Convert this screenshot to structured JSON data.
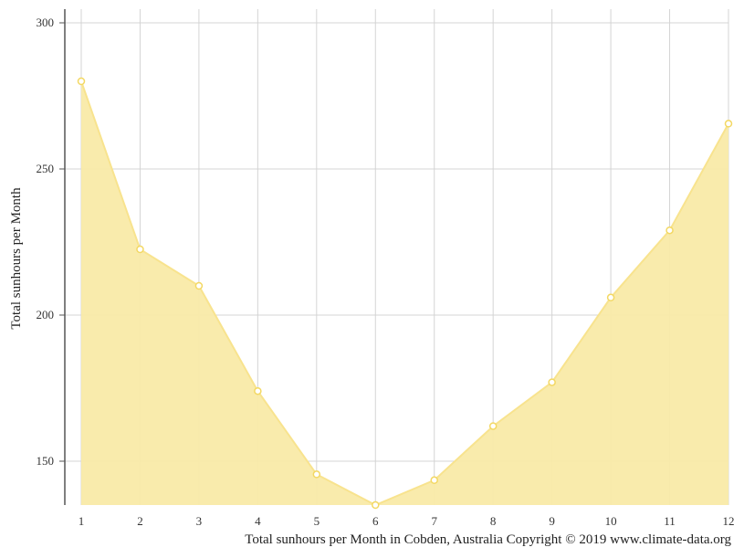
{
  "chart_data": {
    "type": "area",
    "title": "",
    "xlabel": "",
    "ylabel": "Total sunhours per Month",
    "caption": "Total sunhours per Month in Cobden, Australia Copyright © 2019 www.climate-data.org",
    "x": [
      1,
      2,
      3,
      4,
      5,
      6,
      7,
      8,
      9,
      10,
      11,
      12
    ],
    "x_tick_labels": [
      "1",
      "2",
      "3",
      "4",
      "5",
      "6",
      "7",
      "8",
      "9",
      "10",
      "11",
      "12"
    ],
    "y_ticks": [
      150,
      200,
      250,
      300
    ],
    "y_tick_labels": [
      "150",
      "200",
      "250",
      "300"
    ],
    "ylim": [
      135,
      305
    ],
    "grid": true,
    "series": [
      {
        "values": [
          280,
          222.5,
          210,
          174,
          145.5,
          135,
          143.5,
          162,
          177,
          206,
          229,
          265.5
        ],
        "fill_color": "#f9eaa8",
        "line_color": "#f8e38e",
        "marker_color": "#f3d863"
      }
    ]
  }
}
